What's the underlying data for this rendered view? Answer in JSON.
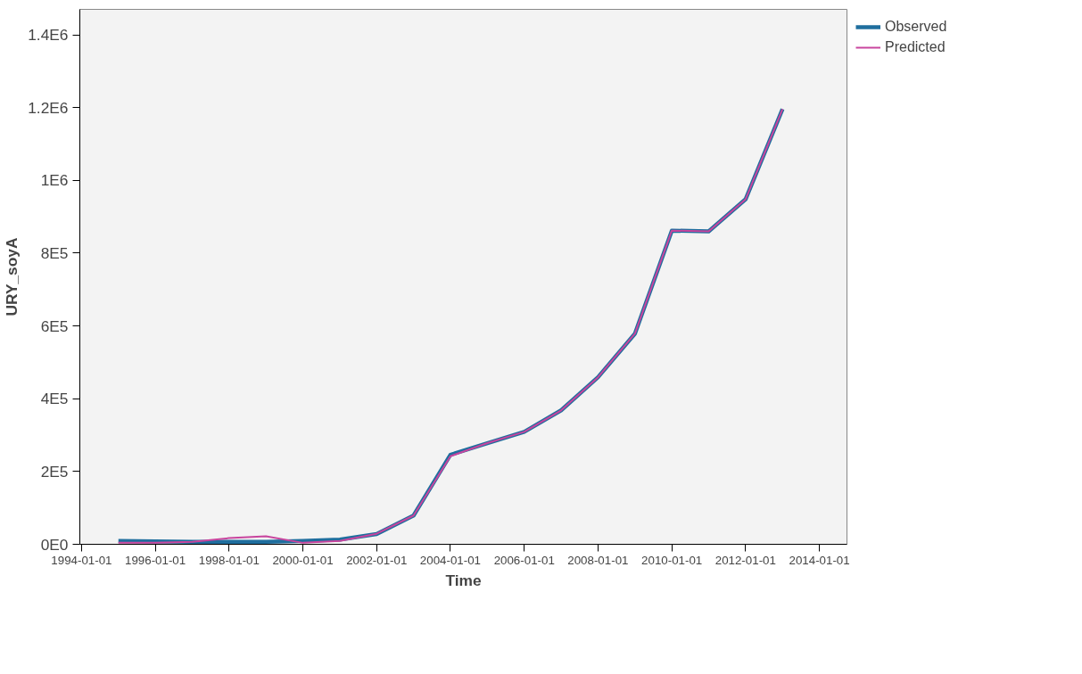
{
  "chart_data": {
    "type": "line",
    "xlabel": "Time",
    "ylabel": "URY_soyA",
    "x": [
      "1995-01-01",
      "1996-01-01",
      "1997-01-01",
      "1998-01-01",
      "1999-01-01",
      "2000-01-01",
      "2001-01-01",
      "2002-01-01",
      "2003-01-01",
      "2004-01-01",
      "2005-01-01",
      "2006-01-01",
      "2007-01-01",
      "2008-01-01",
      "2009-01-01",
      "2010-01-01",
      "2011-01-01",
      "2012-01-01",
      "2013-01-01"
    ],
    "series": [
      {
        "name": "Observed",
        "color": "#1f6e9e",
        "values": [
          9000,
          8000,
          7000,
          7000,
          7000,
          9000,
          13000,
          28000,
          79000,
          246000,
          278000,
          309000,
          368000,
          459000,
          579000,
          862000,
          860000,
          948000,
          1196000
        ]
      },
      {
        "name": "Predicted",
        "color": "#c8459e",
        "values": [
          4000,
          4000,
          7000,
          17000,
          22000,
          4000,
          9000,
          29000,
          79000,
          242000,
          278000,
          309000,
          368000,
          459000,
          579000,
          862000,
          860000,
          948000,
          1196000
        ]
      }
    ],
    "xlim": [
      "1993-12-15",
      "2014-10-01"
    ],
    "xticks": [
      "1994-01-01",
      "1996-01-01",
      "1998-01-01",
      "2000-01-01",
      "2002-01-01",
      "2004-01-01",
      "2006-01-01",
      "2008-01-01",
      "2010-01-01",
      "2012-01-01",
      "2014-01-01"
    ],
    "ylim": [
      0,
      1470000
    ],
    "yticks": [
      {
        "value": 0,
        "label": "0E0"
      },
      {
        "value": 200000,
        "label": "2E5"
      },
      {
        "value": 400000,
        "label": "4E5"
      },
      {
        "value": 600000,
        "label": "6E5"
      },
      {
        "value": 800000,
        "label": "8E5"
      },
      {
        "value": 1000000,
        "label": "1E6"
      },
      {
        "value": 1200000,
        "label": "1.2E6"
      },
      {
        "value": 1400000,
        "label": "1.4E6"
      }
    ],
    "grid": false,
    "legend": "top right",
    "line_style": "solid"
  }
}
